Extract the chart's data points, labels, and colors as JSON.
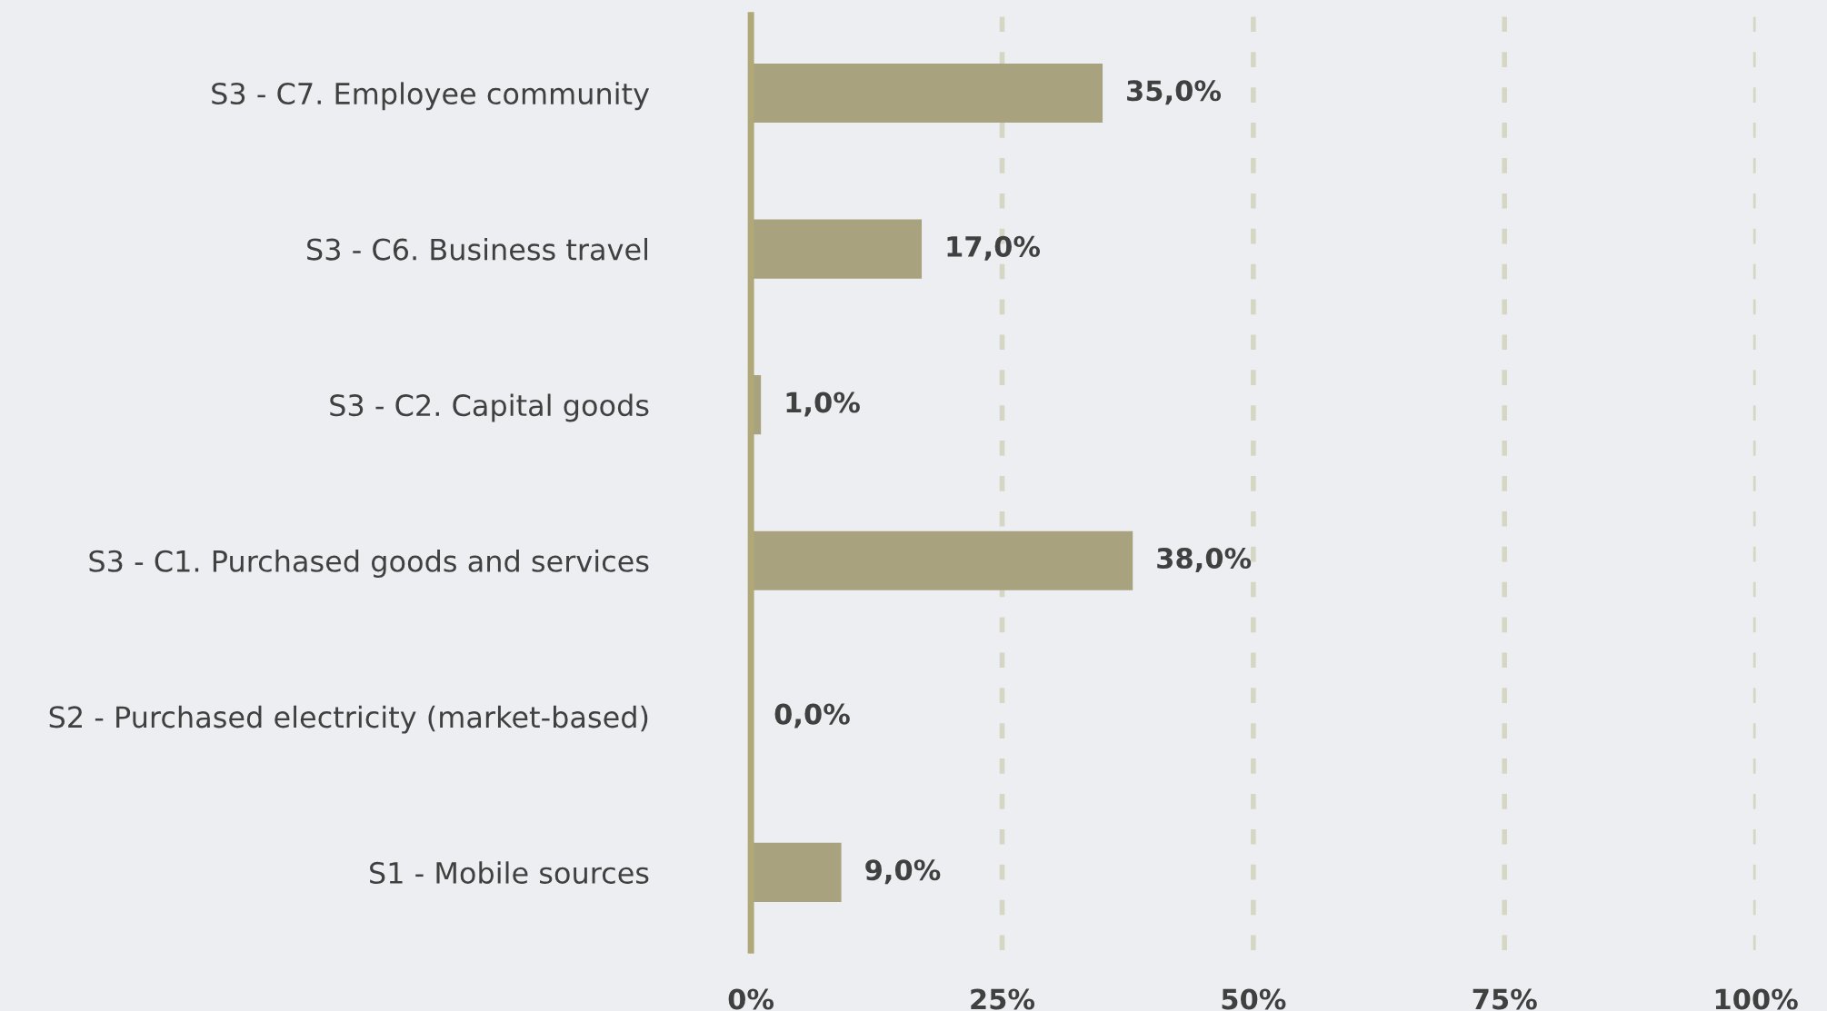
{
  "chart_data": {
    "type": "bar",
    "orientation": "horizontal",
    "categories": [
      "S3 - C7. Employee community",
      "S3 - C6. Business travel",
      "S3 - C2. Capital goods",
      "S3 - C1. Purchased goods and services",
      "S2 - Purchased electricity (market-based)",
      "S1 - Mobile sources"
    ],
    "values": [
      35.0,
      17.0,
      1.0,
      38.0,
      0.0,
      9.0
    ],
    "value_labels": [
      "35,0%",
      "17,0%",
      "1,0%",
      "38,0%",
      "0,0%",
      "9,0%"
    ],
    "color": "#a8a27e",
    "xlim": [
      0,
      100
    ],
    "xticks": [
      {
        "value": 0,
        "label": "0%"
      },
      {
        "value": 25,
        "label": "25%"
      },
      {
        "value": 50,
        "label": "50%"
      },
      {
        "value": 75,
        "label": "75%"
      },
      {
        "value": 100,
        "label": "100%"
      }
    ],
    "grid": "x",
    "line_style": "dashed"
  }
}
